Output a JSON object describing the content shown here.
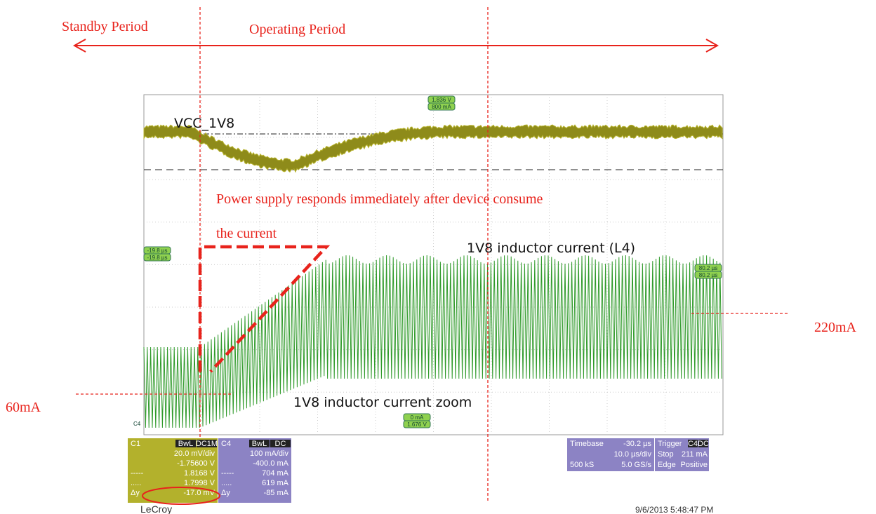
{
  "annotations": {
    "standby": "Standby Period",
    "operating": "Operating Period",
    "response": [
      "Power supply responds immediately after device consume",
      "the current"
    ],
    "level_low": "60mA",
    "level_high": "220mA"
  },
  "scope": {
    "trace_labels": {
      "vcc": "VCC_1V8",
      "inductor": "1V8 inductor current (L4)",
      "zoom": "1V8 inductor current zoom"
    },
    "markers": {
      "top": [
        "1.836 V",
        "800 mA"
      ],
      "left": [
        "-19.8 µs",
        "-19.8 µs"
      ],
      "right": [
        "80.2 µs",
        "80.2 µs"
      ],
      "bottom": [
        "0 mA",
        "1.676 V"
      ],
      "channel": "C4"
    },
    "c1": {
      "name": "C1",
      "badges": [
        "BwL",
        "DC1M"
      ],
      "scale": "20.0 mV/div",
      "offset": "-1.75600 V",
      "cursor1": [
        "-----",
        "1.8168 V"
      ],
      "cursor2": [
        ".....",
        "1.7998 V"
      ],
      "delta": [
        "Δy",
        "-17.0 mV"
      ]
    },
    "c4": {
      "name": "C4",
      "badges": [
        "BwL",
        "DC"
      ],
      "scale": "100 mA/div",
      "offset": "-400.0 mA",
      "cursor1": [
        "-----",
        "704 mA"
      ],
      "cursor2": [
        ".....",
        "619 mA"
      ],
      "delta": [
        "Δy",
        "-85 mA"
      ]
    },
    "timebase": {
      "label": "Timebase",
      "delay": "-30.2 µs",
      "per_div": "10.0 µs/div",
      "samples": "500 kS",
      "rate": "5.0 GS/s"
    },
    "trigger": {
      "label": "Trigger",
      "badges": [
        "C4",
        "DC"
      ],
      "mode_label": "Stop",
      "level": "211 mA",
      "type_label": "Edge",
      "slope": "Positive"
    },
    "brand": "LeCroy",
    "timestamp": "9/6/2013 5:48:47 PM"
  }
}
